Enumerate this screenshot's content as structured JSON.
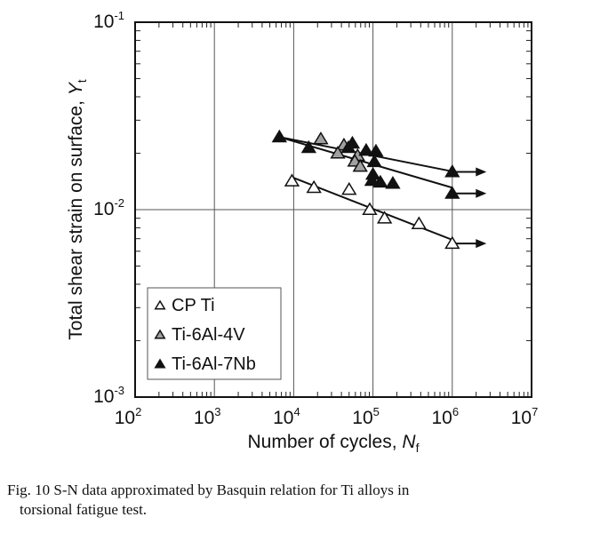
{
  "chart_data": {
    "type": "scatter",
    "title": "",
    "xlabel": "Number of cycles, N",
    "xlabel_sub": "f",
    "ylabel": "Total shear strain on surface, Y",
    "ylabel_sub": "t",
    "x_scale": "log",
    "y_scale": "log",
    "xlim": [
      100,
      10000000
    ],
    "ylim": [
      0.001,
      0.1
    ],
    "x_ticks": [
      {
        "base": "10",
        "exp": "2"
      },
      {
        "base": "10",
        "exp": "3"
      },
      {
        "base": "10",
        "exp": "4"
      },
      {
        "base": "10",
        "exp": "5"
      },
      {
        "base": "10",
        "exp": "6"
      },
      {
        "base": "10",
        "exp": "7"
      }
    ],
    "y_ticks": [
      {
        "base": "10",
        "exp": "-3"
      },
      {
        "base": "10",
        "exp": "-2"
      },
      {
        "base": "10",
        "exp": "-1"
      }
    ],
    "grid": true,
    "legend_position": "bottom-left",
    "series": [
      {
        "name": "CP Ti",
        "marker": "open-triangle",
        "color": "#ffffff",
        "points": [
          [
            9500,
            0.0142
          ],
          [
            18000,
            0.0131
          ],
          [
            50000,
            0.0128
          ],
          [
            91000,
            0.01
          ],
          [
            140000,
            0.009
          ],
          [
            380000,
            0.0084
          ],
          [
            1000000,
            0.0066
          ]
        ],
        "fit_line": [
          [
            9500,
            0.0149
          ],
          [
            1000000,
            0.0069
          ]
        ],
        "runout_arrows": [
          [
            1000000,
            0.0066,
            2700000
          ]
        ]
      },
      {
        "name": "Ti-6Al-4V",
        "marker": "gray-triangle",
        "color": "#a0a0a0",
        "points": [
          [
            22000,
            0.0238
          ],
          [
            43000,
            0.0221
          ],
          [
            36000,
            0.02
          ],
          [
            64000,
            0.0194
          ],
          [
            59000,
            0.0181
          ],
          [
            69000,
            0.017
          ]
        ],
        "fit_line": [
          [
            6600,
            0.0244
          ],
          [
            1000000,
            0.0131
          ]
        ],
        "runout_arrows": []
      },
      {
        "name": "Ti-6Al-7Nb",
        "marker": "filled-triangle",
        "color": "#111111",
        "points": [
          [
            6600,
            0.0244
          ],
          [
            15500,
            0.0214
          ],
          [
            55000,
            0.0226
          ],
          [
            49000,
            0.0214
          ],
          [
            82000,
            0.0207
          ],
          [
            109000,
            0.0205
          ],
          [
            104000,
            0.018
          ],
          [
            100000,
            0.0154
          ],
          [
            97000,
            0.0143
          ],
          [
            124000,
            0.014
          ],
          [
            178000,
            0.0138
          ],
          [
            1000000,
            0.0159
          ],
          [
            1000000,
            0.0122
          ]
        ],
        "fit_line": [
          [
            6600,
            0.0244
          ],
          [
            1000000,
            0.016
          ]
        ],
        "runout_arrows": [
          [
            1000000,
            0.0159,
            2700000
          ],
          [
            1000000,
            0.0122,
            2700000
          ]
        ]
      }
    ]
  },
  "caption": {
    "line1": "Fig. 10   S-N data approximated by Basquin relation for Ti alloys in",
    "line2": "torsional fatigue test."
  }
}
